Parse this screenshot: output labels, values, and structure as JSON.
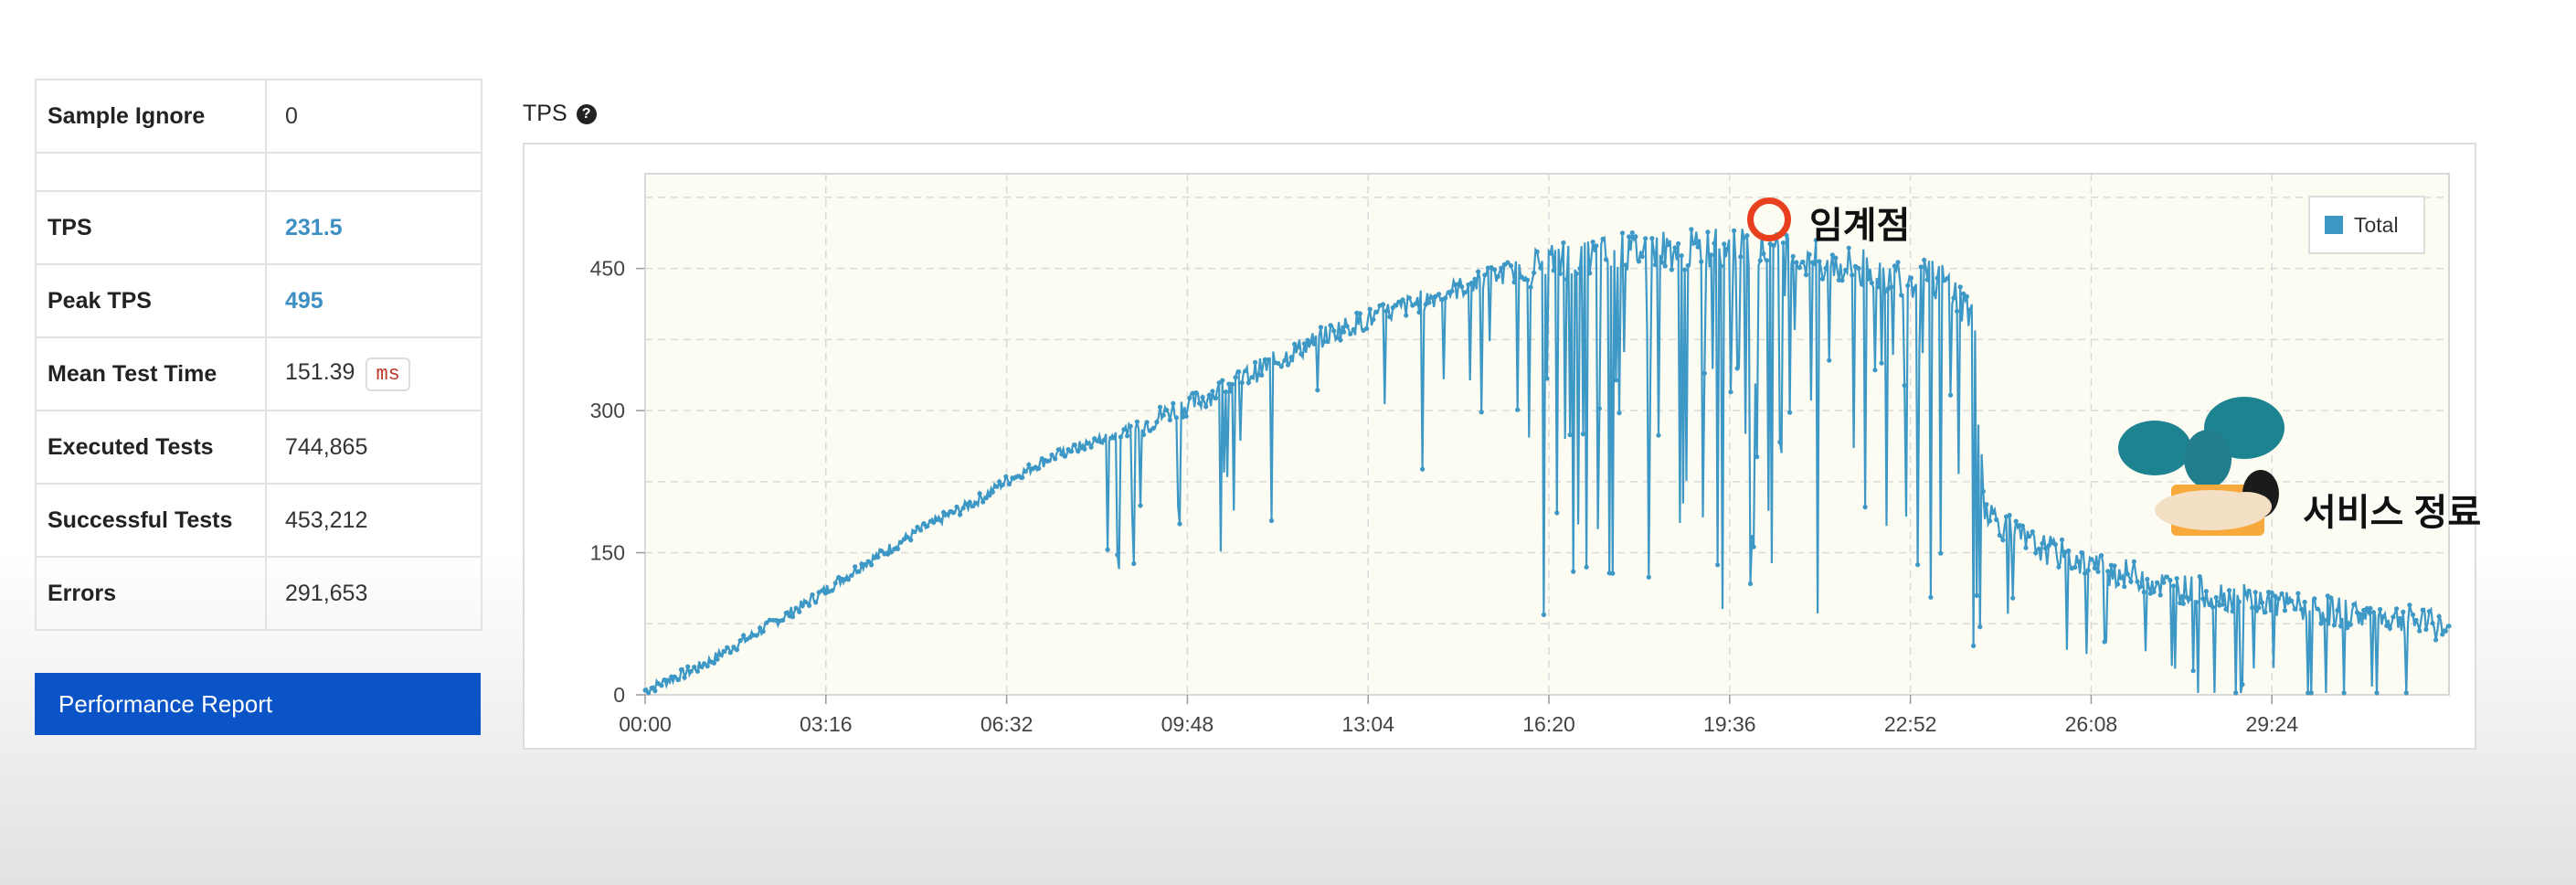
{
  "stats": [
    {
      "label": "Sample Ignore",
      "value": "0"
    },
    {
      "label": "TPS",
      "value": "231.5"
    },
    {
      "label": "Peak TPS",
      "value": "495"
    },
    {
      "label": "Mean Test Time",
      "value": "151.39",
      "unit": "ms"
    },
    {
      "label": "Executed Tests",
      "value": "744,865"
    },
    {
      "label": "Successful Tests",
      "value": "453,212"
    },
    {
      "label": "Errors",
      "value": "291,653"
    }
  ],
  "report_button": "Performance Report",
  "chart": {
    "title": "TPS",
    "help_icon": "question-circle-icon",
    "legend": "Total",
    "annotations": {
      "critical_point": "임계점",
      "service_end": "서비스 정료"
    }
  },
  "colors": {
    "series": "#3d98c6",
    "accent": "#3d8fc4",
    "button": "#0b54c8",
    "marker": "#e8401c"
  },
  "chart_data": {
    "type": "line",
    "title": "",
    "xlabel": "",
    "ylabel": "",
    "x_ticks": [
      "00:00",
      "03:16",
      "06:32",
      "09:48",
      "13:04",
      "16:20",
      "19:36",
      "22:52",
      "26:08",
      "29:24"
    ],
    "y_ticks": [
      0,
      150,
      300,
      450
    ],
    "ylim": [
      0,
      550
    ],
    "xlim_minutes": [
      0,
      32.6
    ],
    "grid": true,
    "legend_position": "top-right",
    "series": [
      {
        "name": "Total",
        "x_minutes": [
          0,
          1,
          2,
          3,
          4,
          5,
          6,
          6.5,
          7,
          7.5,
          8,
          8.5,
          9,
          9.5,
          10,
          10.5,
          11,
          11.5,
          12,
          12.5,
          13,
          13.5,
          14,
          14.5,
          15,
          15.5,
          16,
          16.5,
          17,
          17.5,
          18,
          18.5,
          19,
          19.5,
          20,
          20.5,
          21,
          21.5,
          22,
          22.5,
          23,
          23.5,
          24,
          24.2,
          24.5,
          25,
          25.5,
          26,
          26.5,
          27,
          27.5,
          28,
          28.5,
          29,
          29.5,
          30,
          30.5,
          31,
          31.5,
          32,
          32.6
        ],
        "y": [
          5,
          30,
          65,
          100,
          140,
          175,
          205,
          225,
          240,
          255,
          265,
          275,
          285,
          300,
          310,
          325,
          340,
          355,
          370,
          385,
          395,
          405,
          415,
          425,
          435,
          445,
          450,
          460,
          460,
          465,
          470,
          470,
          470,
          475,
          470,
          465,
          460,
          455,
          450,
          445,
          440,
          435,
          400,
          200,
          180,
          160,
          150,
          140,
          130,
          125,
          115,
          110,
          105,
          100,
          95,
          92,
          88,
          85,
          82,
          78,
          70
        ],
        "notes": "Steady ramp, then heavy oscillation after ~16:20; drops sharply after ~24:00"
      }
    ]
  }
}
